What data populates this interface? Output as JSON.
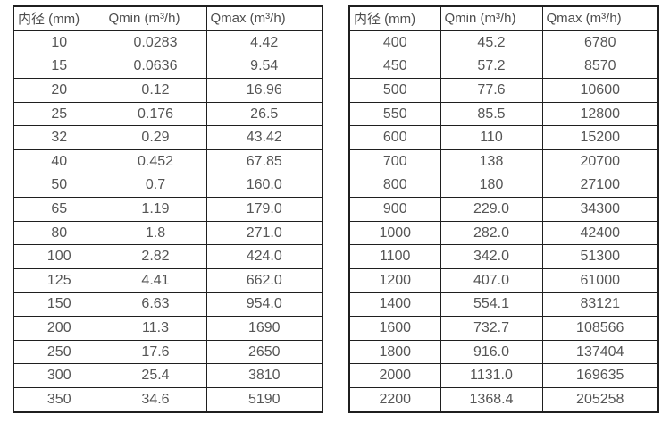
{
  "colors": {
    "background": "#ffffff",
    "border": "#1f1f1f",
    "text": "#555555"
  },
  "tables": [
    {
      "name": "small-diameters",
      "headers": [
        "内径 (mm)",
        "Qmin (m³/h)",
        "Qmax (m³/h)"
      ],
      "rows": [
        [
          "10",
          "0.0283",
          "4.42"
        ],
        [
          "15",
          "0.0636",
          "9.54"
        ],
        [
          "20",
          "0.12",
          "16.96"
        ],
        [
          "25",
          "0.176",
          "26.5"
        ],
        [
          "32",
          "0.29",
          "43.42"
        ],
        [
          "40",
          "0.452",
          "67.85"
        ],
        [
          "50",
          "0.7",
          "160.0"
        ],
        [
          "65",
          "1.19",
          "179.0"
        ],
        [
          "80",
          "1.8",
          "271.0"
        ],
        [
          "100",
          "2.82",
          "424.0"
        ],
        [
          "125",
          "4.41",
          "662.0"
        ],
        [
          "150",
          "6.63",
          "954.0"
        ],
        [
          "200",
          "11.3",
          "1690"
        ],
        [
          "250",
          "17.6",
          "2650"
        ],
        [
          "300",
          "25.4",
          "3810"
        ],
        [
          "350",
          "34.6",
          "5190"
        ]
      ]
    },
    {
      "name": "large-diameters",
      "headers": [
        "内径 (mm)",
        "Qmin (m³/h)",
        "Qmax (m³/h)"
      ],
      "rows": [
        [
          "400",
          "45.2",
          "6780"
        ],
        [
          "450",
          "57.2",
          "8570"
        ],
        [
          "500",
          "77.6",
          "10600"
        ],
        [
          "550",
          "85.5",
          "12800"
        ],
        [
          "600",
          "110",
          "15200"
        ],
        [
          "700",
          "138",
          "20700"
        ],
        [
          "800",
          "180",
          "27100"
        ],
        [
          "900",
          "229.0",
          "34300"
        ],
        [
          "1000",
          "282.0",
          "42400"
        ],
        [
          "1100",
          "342.0",
          "51300"
        ],
        [
          "1200",
          "407.0",
          "61000"
        ],
        [
          "1400",
          "554.1",
          "83121"
        ],
        [
          "1600",
          "732.7",
          "108566"
        ],
        [
          "1800",
          "916.0",
          "137404"
        ],
        [
          "2000",
          "1131.0",
          "169635"
        ],
        [
          "2200",
          "1368.4",
          "205258"
        ]
      ]
    }
  ]
}
